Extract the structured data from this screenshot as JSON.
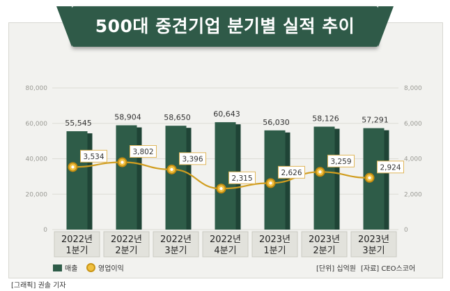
{
  "title": "500대 중견기업 분기별 실적 추이",
  "chart_data": {
    "type": "bar",
    "categories": [
      [
        "2022년",
        "1분기"
      ],
      [
        "2022년",
        "2분기"
      ],
      [
        "2022년",
        "3분기"
      ],
      [
        "2022년",
        "4분기"
      ],
      [
        "2023년",
        "1분기"
      ],
      [
        "2023년",
        "2분기"
      ],
      [
        "2023년",
        "3분기"
      ]
    ],
    "series": [
      {
        "name": "매출",
        "type": "bar",
        "axis": "left",
        "values": [
          55545,
          58904,
          58650,
          60643,
          56030,
          58126,
          57291
        ],
        "labels": [
          "55,545",
          "58,904",
          "58,650",
          "60,643",
          "56,030",
          "58,126",
          "57,291"
        ]
      },
      {
        "name": "영업이익",
        "type": "line",
        "axis": "right",
        "values": [
          3534,
          3802,
          3396,
          2315,
          2626,
          3259,
          2924
        ],
        "labels": [
          "3,534",
          "3,802",
          "3,396",
          "2,315",
          "2,626",
          "3,259",
          "2,924"
        ]
      }
    ],
    "y_left": {
      "min": 0,
      "max": 80000,
      "ticks": [
        "0",
        "20,000",
        "40,000",
        "60,000",
        "80,000"
      ],
      "values": [
        0,
        20000,
        40000,
        60000,
        80000
      ]
    },
    "y_right": {
      "min": 0,
      "max": 8000,
      "ticks": [
        "0",
        "2,000",
        "4,000",
        "6,000",
        "8,000"
      ],
      "values": [
        0,
        2000,
        4000,
        6000,
        8000
      ]
    },
    "grid": true,
    "colors": {
      "bar": "#2e5c48",
      "bar_side": "#1f4436",
      "line": "#d19e20",
      "marker_fill": "#f0c040",
      "label_border": "#e0b65a"
    }
  },
  "legend": {
    "bar_label": "매출",
    "line_label": "영업이익"
  },
  "unit_note": "[단위] 십억원",
  "source_note": "[자료] CEO스코어",
  "credit": "[그래픽] 권솔 기자"
}
